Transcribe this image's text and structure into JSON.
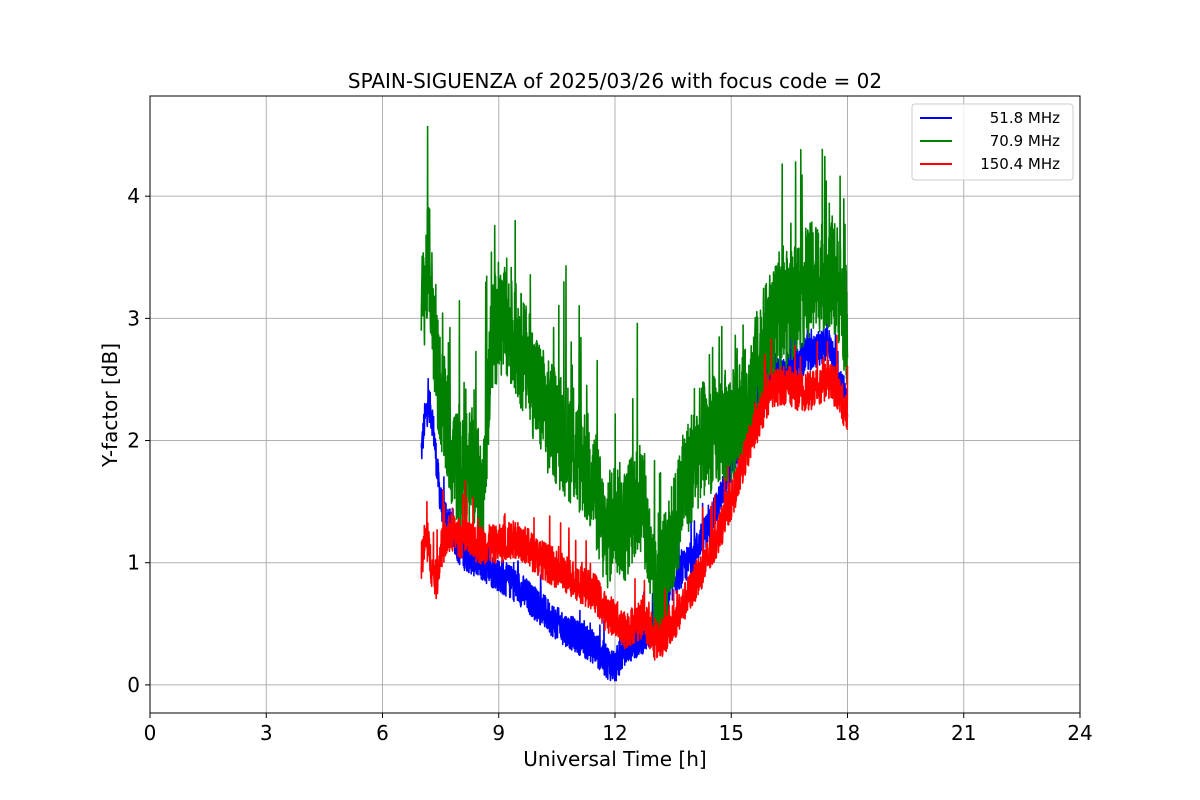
{
  "chart_data": {
    "type": "line",
    "title": "SPAIN-SIGUENZA of 2025/03/26 with focus code = 02",
    "xlabel": "Universal Time [h]",
    "ylabel": "Y-factor [dB]",
    "xlim": [
      0,
      24
    ],
    "ylim": [
      -0.23,
      4.82
    ],
    "xticks": [
      0,
      3,
      6,
      9,
      12,
      15,
      18,
      21,
      24
    ],
    "yticks": [
      0,
      1,
      2,
      3,
      4
    ],
    "grid": true,
    "legend_position": "top-right",
    "series": [
      {
        "name": "51.8 MHz",
        "color": "#0000ff",
        "x": [
          7.0,
          7.1,
          7.2,
          7.3,
          7.4,
          7.5,
          7.75,
          8.0,
          8.5,
          9.0,
          9.5,
          10.0,
          10.5,
          11.0,
          11.5,
          11.75,
          12.0,
          12.25,
          12.5,
          12.75,
          13.0,
          13.25,
          13.5,
          13.75,
          14.0,
          14.25,
          14.5,
          14.75,
          15.0,
          15.5,
          16.0,
          16.5,
          17.0,
          17.5,
          18.0
        ],
        "y": [
          1.9,
          2.2,
          2.3,
          2.15,
          1.8,
          1.5,
          1.3,
          1.1,
          1.0,
          0.9,
          0.8,
          0.65,
          0.5,
          0.4,
          0.3,
          0.2,
          0.15,
          0.3,
          0.35,
          0.4,
          0.45,
          0.6,
          0.85,
          0.95,
          1.05,
          1.2,
          1.35,
          1.55,
          1.8,
          2.25,
          2.5,
          2.6,
          2.7,
          2.8,
          2.3
        ],
        "noise": 0.14
      },
      {
        "name": "70.9 MHz",
        "color": "#008000",
        "x": [
          7.0,
          7.1,
          7.2,
          7.3,
          7.4,
          7.6,
          7.8,
          8.0,
          8.3,
          8.6,
          8.8,
          9.0,
          9.25,
          9.5,
          9.75,
          10.0,
          10.25,
          10.5,
          10.75,
          11.0,
          11.25,
          11.5,
          11.75,
          12.0,
          12.25,
          12.5,
          12.75,
          13.0,
          13.25,
          13.5,
          13.75,
          14.0,
          14.25,
          14.5,
          14.75,
          15.0,
          15.25,
          15.5,
          15.75,
          16.0,
          16.25,
          16.5,
          16.75,
          17.0,
          17.25,
          17.5,
          17.75,
          18.0
        ],
        "y": [
          3.0,
          3.3,
          3.5,
          3.0,
          2.6,
          2.2,
          1.9,
          1.7,
          1.8,
          1.5,
          2.8,
          3.0,
          2.9,
          2.8,
          2.6,
          2.4,
          2.2,
          2.1,
          2.0,
          1.9,
          1.8,
          1.6,
          1.2,
          1.4,
          1.3,
          1.5,
          1.5,
          0.7,
          0.9,
          1.2,
          1.6,
          1.8,
          2.0,
          2.05,
          2.1,
          2.1,
          2.2,
          2.4,
          2.7,
          2.9,
          3.0,
          3.1,
          3.2,
          3.3,
          3.35,
          3.4,
          3.3,
          2.9
        ],
        "noise": 0.48
      },
      {
        "name": "150.4 MHz",
        "color": "#ff0000",
        "x": [
          7.0,
          7.1,
          7.2,
          7.3,
          7.4,
          7.5,
          7.75,
          8.0,
          8.5,
          9.0,
          9.5,
          10.0,
          10.5,
          11.0,
          11.5,
          11.75,
          12.0,
          12.25,
          12.5,
          12.75,
          13.0,
          13.25,
          13.5,
          13.75,
          14.0,
          14.25,
          14.5,
          14.75,
          15.0,
          15.25,
          15.5,
          15.75,
          16.0,
          16.25,
          16.5,
          16.75,
          17.0,
          17.25,
          17.5,
          17.75,
          18.0
        ],
        "y": [
          1.0,
          1.2,
          1.1,
          0.9,
          0.85,
          1.1,
          1.25,
          1.2,
          1.15,
          1.15,
          1.2,
          1.05,
          0.95,
          0.85,
          0.75,
          0.6,
          0.55,
          0.45,
          0.5,
          0.55,
          0.35,
          0.4,
          0.5,
          0.65,
          0.8,
          0.95,
          1.1,
          1.3,
          1.5,
          1.75,
          2.0,
          2.2,
          2.4,
          2.45,
          2.45,
          2.4,
          2.4,
          2.45,
          2.5,
          2.4,
          2.2
        ],
        "noise": 0.16
      }
    ]
  }
}
